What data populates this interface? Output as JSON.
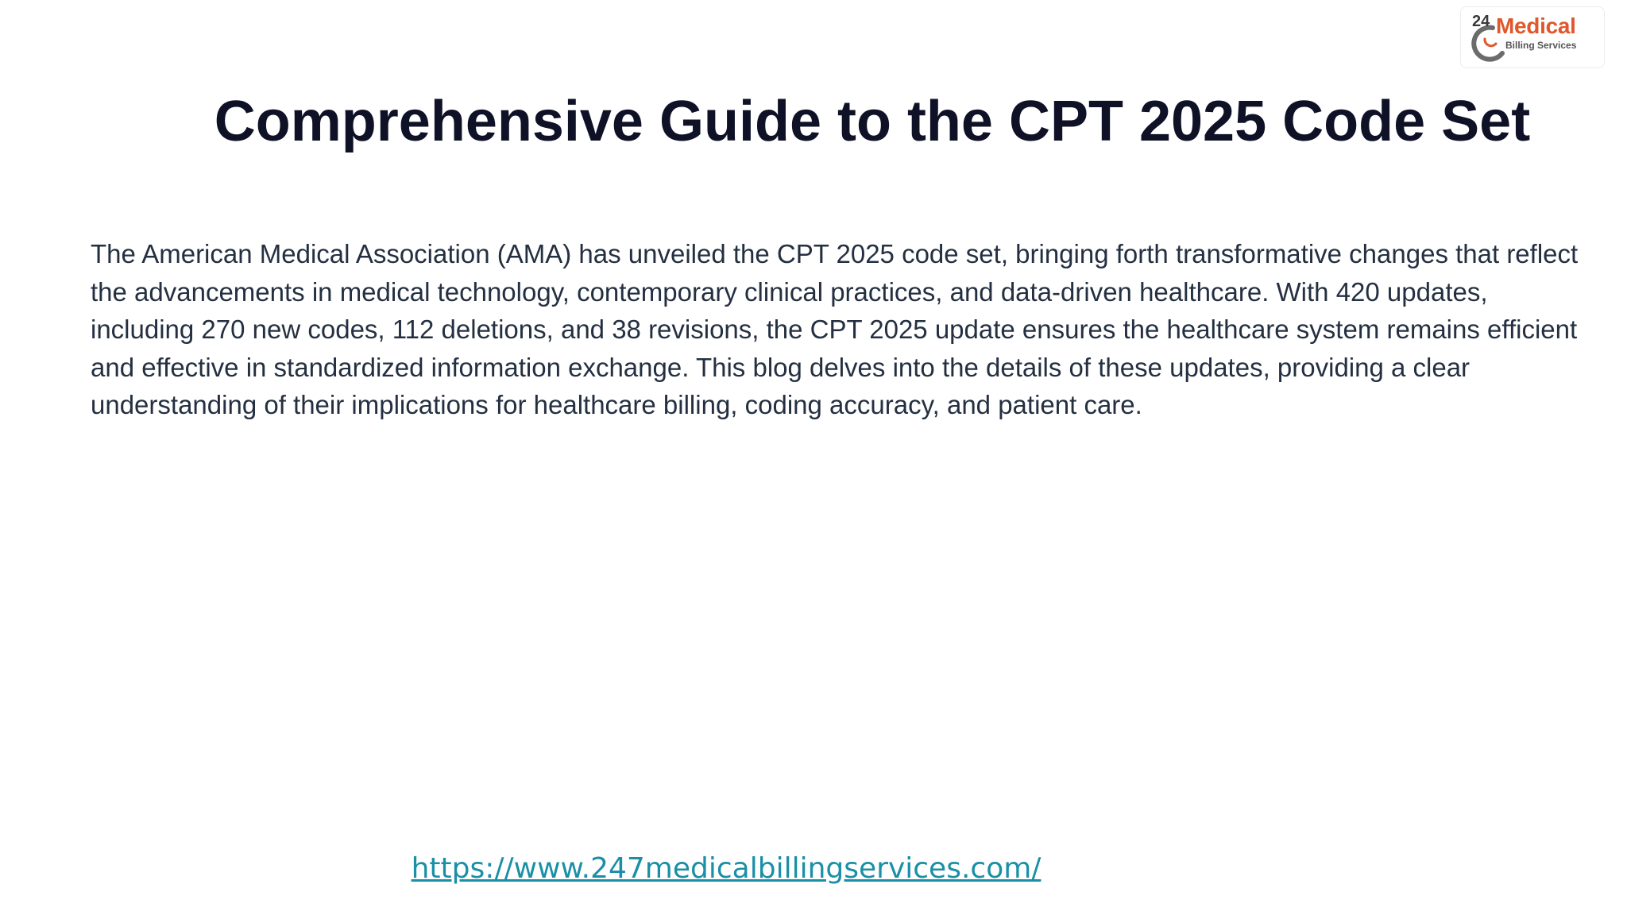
{
  "logo": {
    "number": "24",
    "brand": "Medical",
    "subtitle": "Billing Services",
    "colors": {
      "brand": "#e0572b",
      "number": "#3a3a3a",
      "ring": "#6b6b6b"
    }
  },
  "title": "Comprehensive Guide to the CPT 2025 Code Set",
  "body": "The American Medical Association (AMA) has unveiled the CPT 2025 code set, bringing forth transformative changes that reflect the advancements in medical technology, contemporary clinical practices, and data-driven healthcare. With 420 updates, including 270 new codes, 112 deletions, and 38 revisions, the CPT 2025 update ensures the healthcare system remains efficient and effective in standardized information exchange. This blog delves into the details of these updates, providing a clear understanding of their implications for healthcare billing, coding accuracy, and patient care.",
  "link": "https://www.247medicalbillingservices.com/",
  "colors": {
    "title": "#0f1226",
    "body": "#243041",
    "link": "#1a8fa6",
    "background": "#ffffff"
  }
}
